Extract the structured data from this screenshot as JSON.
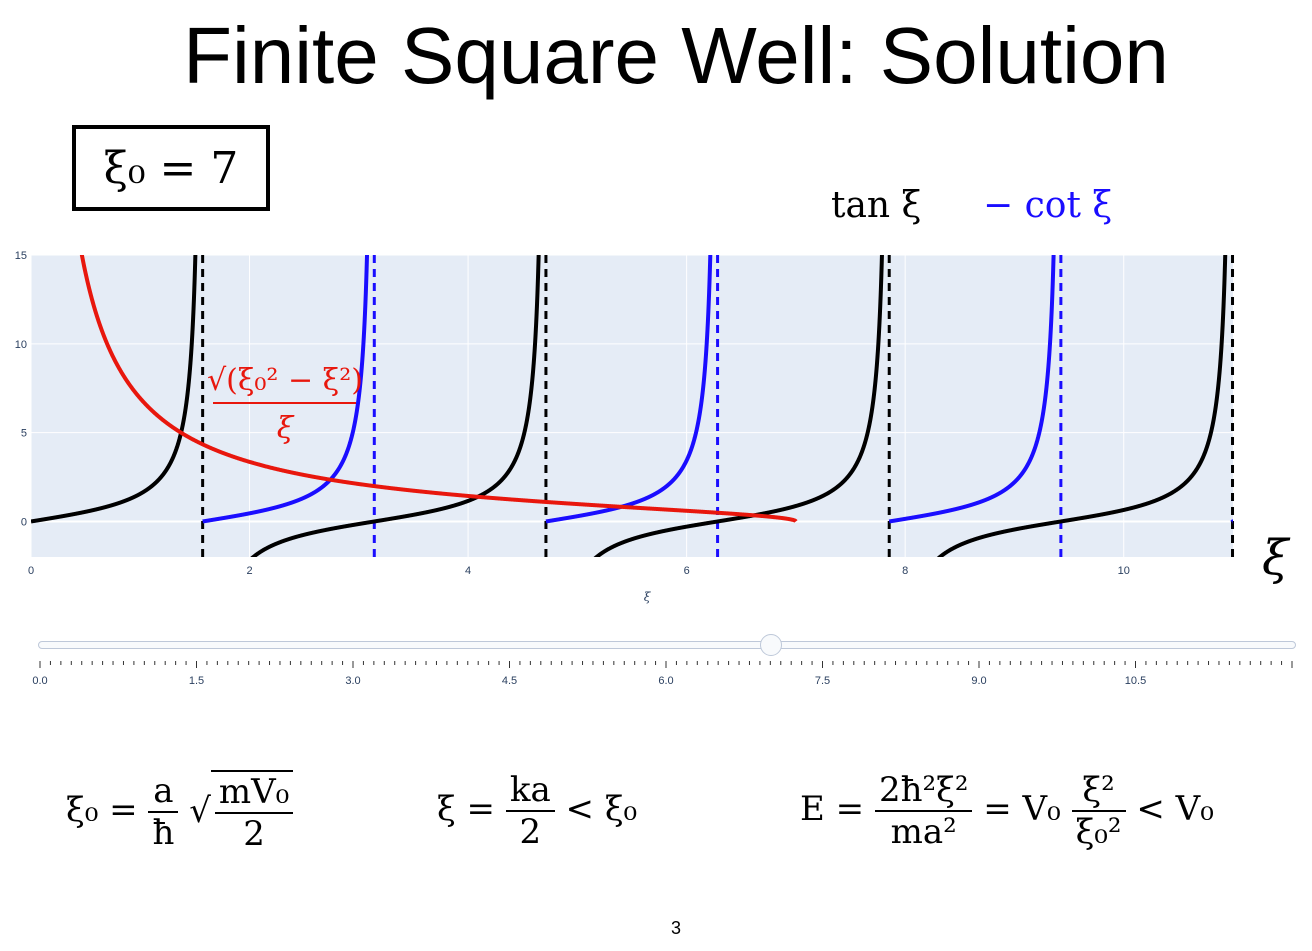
{
  "slide": {
    "title": "Finite Square Well: Solution",
    "xi0_box": "ξ₀ = 7",
    "page_number": "3"
  },
  "legend": {
    "tan_label": "tan ξ",
    "cot_label": "− cot ξ",
    "tan_color": "#000000",
    "cot_color": "#1a0dff"
  },
  "axis": {
    "big_xi_label": "ξ",
    "small_xi_label": "ξ"
  },
  "curve_label": {
    "num": "√(ξ₀² − ξ²)",
    "den": "ξ",
    "color": "#e8170d"
  },
  "slider": {
    "value": 7,
    "min": 0,
    "max": 12,
    "tick_labels": [
      "0.0",
      "1.5",
      "3.0",
      "4.5",
      "6.0",
      "7.5",
      "9.0",
      "10.5"
    ]
  },
  "equations": {
    "eq1_lhs": "ξ₀ =",
    "eq1_frac_num": "a",
    "eq1_frac_den": "ħ",
    "eq1_rad_num": "mV₀",
    "eq1_rad_den": "2",
    "eq2_lhs": "ξ =",
    "eq2_frac_num": "ka",
    "eq2_frac_den": "2",
    "eq2_rhs": "< ξ₀",
    "eq3_lhs": "E =",
    "eq3_frac_num": "2ħ²ξ²",
    "eq3_frac_den": "ma²",
    "eq3_mid": "= V₀",
    "eq3_frac2_num": "ξ²",
    "eq3_frac2_den": "ξ₀²",
    "eq3_rhs": "< V₀"
  },
  "chart_data": {
    "type": "line",
    "xi0": 7,
    "xlim": [
      0,
      11
    ],
    "ylim": [
      -2,
      15
    ],
    "x_ticks": [
      0,
      2,
      4,
      6,
      8,
      10
    ],
    "y_ticks": [
      0,
      5,
      10,
      15
    ],
    "grid": true,
    "plot_bg": "#e5ecf6",
    "series": [
      {
        "name": "tan ξ",
        "function": "tan(x)",
        "color": "#000000"
      },
      {
        "name": "− cot ξ",
        "function": "-cot(x)",
        "color": "#1a0dff"
      },
      {
        "function": "sqrt(xi0^2 - x^2)/x",
        "color": "#e8170d",
        "domain": [
          0.45,
          7
        ]
      }
    ],
    "asymptotes_tan": [
      1.5708,
      4.7124,
      7.854,
      10.9956
    ],
    "asymptotes_cot": [
      3.1416,
      6.2832,
      9.4248
    ]
  }
}
